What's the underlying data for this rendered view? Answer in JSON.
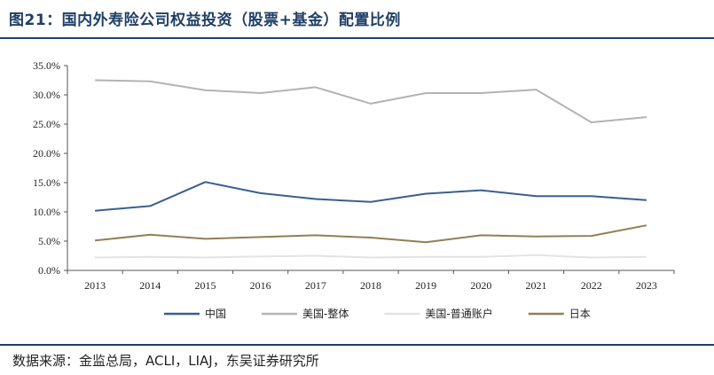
{
  "header": {
    "title": "图21：国内外寿险公司权益投资（股票+基金）配置比例"
  },
  "footer": {
    "source": "数据来源：金监总局，ACLI，LIAJ，东吴证券研究所"
  },
  "chart_data": {
    "type": "line",
    "categories": [
      "2013",
      "2014",
      "2015",
      "2016",
      "2017",
      "2018",
      "2019",
      "2020",
      "2021",
      "2022",
      "2023"
    ],
    "ylim": [
      0,
      35
    ],
    "yticks": [
      "0.0%",
      "5.0%",
      "10.0%",
      "15.0%",
      "20.0%",
      "25.0%",
      "30.0%",
      "35.0%"
    ],
    "grid": false,
    "legend_position": "bottom",
    "series": [
      {
        "name": "中国",
        "color": "#3a5f8f",
        "values": [
          10.2,
          11.0,
          15.1,
          13.2,
          12.2,
          11.7,
          13.1,
          13.7,
          12.7,
          12.7,
          12.0
        ]
      },
      {
        "name": "美国-整体",
        "color": "#b3b3b3",
        "values": [
          32.5,
          32.3,
          30.8,
          30.3,
          31.3,
          28.5,
          30.3,
          30.3,
          30.9,
          25.3,
          26.2
        ]
      },
      {
        "name": "美国-普通账户",
        "color": "#e3e3e3",
        "values": [
          2.2,
          2.3,
          2.2,
          2.4,
          2.5,
          2.2,
          2.3,
          2.3,
          2.6,
          2.2,
          2.3
        ]
      },
      {
        "name": "日本",
        "color": "#8f8055",
        "values": [
          5.1,
          6.1,
          5.4,
          5.7,
          6.0,
          5.6,
          4.8,
          6.0,
          5.8,
          5.9,
          7.7
        ]
      }
    ]
  }
}
